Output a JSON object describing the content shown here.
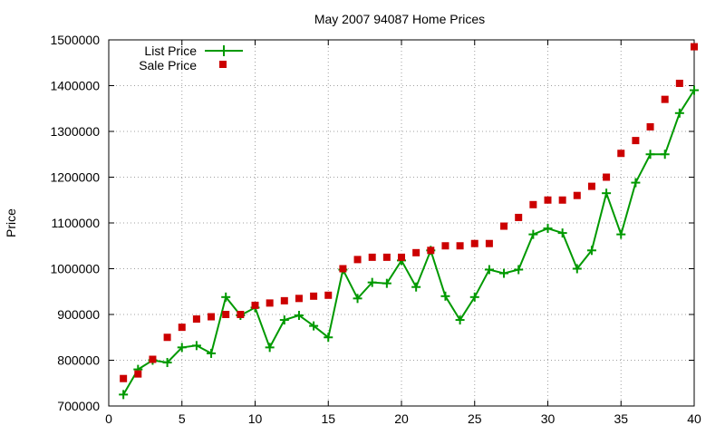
{
  "chart_data": {
    "type": "line",
    "title": "May 2007 94087 Home Prices",
    "xlabel": "",
    "ylabel": "Price",
    "xlim": [
      0,
      40
    ],
    "ylim": [
      700000,
      1500000
    ],
    "xticks": [
      0,
      5,
      10,
      15,
      20,
      25,
      30,
      35,
      40
    ],
    "yticks": [
      700000,
      800000,
      900000,
      1000000,
      1100000,
      1200000,
      1300000,
      1400000,
      1500000
    ],
    "grid": true,
    "legend": "top-left",
    "series": [
      {
        "name": "List Price",
        "style": "line+cross",
        "color": "#009900",
        "x": [
          1,
          2,
          3,
          4,
          5,
          6,
          7,
          8,
          9,
          10,
          11,
          12,
          13,
          14,
          15,
          16,
          17,
          18,
          19,
          20,
          21,
          22,
          23,
          24,
          25,
          26,
          27,
          28,
          29,
          30,
          31,
          32,
          33,
          34,
          35,
          36,
          37,
          38,
          39,
          40
        ],
        "values": [
          725000,
          780000,
          800000,
          795000,
          828000,
          832000,
          815000,
          938000,
          898000,
          915000,
          828000,
          888000,
          898000,
          875000,
          850000,
          998000,
          935000,
          970000,
          968000,
          1018000,
          960000,
          1040000,
          940000,
          888000,
          938000,
          998000,
          990000,
          998000,
          1075000,
          1088000,
          1078000,
          1000000,
          1040000,
          1165000,
          1075000,
          1188000,
          1250000,
          1250000,
          1340000,
          1390000
        ]
      },
      {
        "name": "Sale Price",
        "style": "square",
        "color": "#cc0000",
        "x": [
          1,
          2,
          3,
          4,
          5,
          6,
          7,
          8,
          9,
          10,
          11,
          12,
          13,
          14,
          15,
          16,
          17,
          18,
          19,
          20,
          21,
          22,
          23,
          24,
          25,
          26,
          27,
          28,
          29,
          30,
          31,
          32,
          33,
          34,
          35,
          36,
          37,
          38,
          39,
          40
        ],
        "values": [
          760000,
          770000,
          802000,
          850000,
          872000,
          890000,
          895000,
          900000,
          900000,
          920000,
          925000,
          930000,
          935000,
          940000,
          942000,
          1000000,
          1020000,
          1025000,
          1025000,
          1025000,
          1035000,
          1040000,
          1050000,
          1050000,
          1055000,
          1055000,
          1093000,
          1112000,
          1140000,
          1150000,
          1150000,
          1160000,
          1180000,
          1200000,
          1252000,
          1280000,
          1310000,
          1370000,
          1405000,
          1485000
        ]
      }
    ]
  }
}
